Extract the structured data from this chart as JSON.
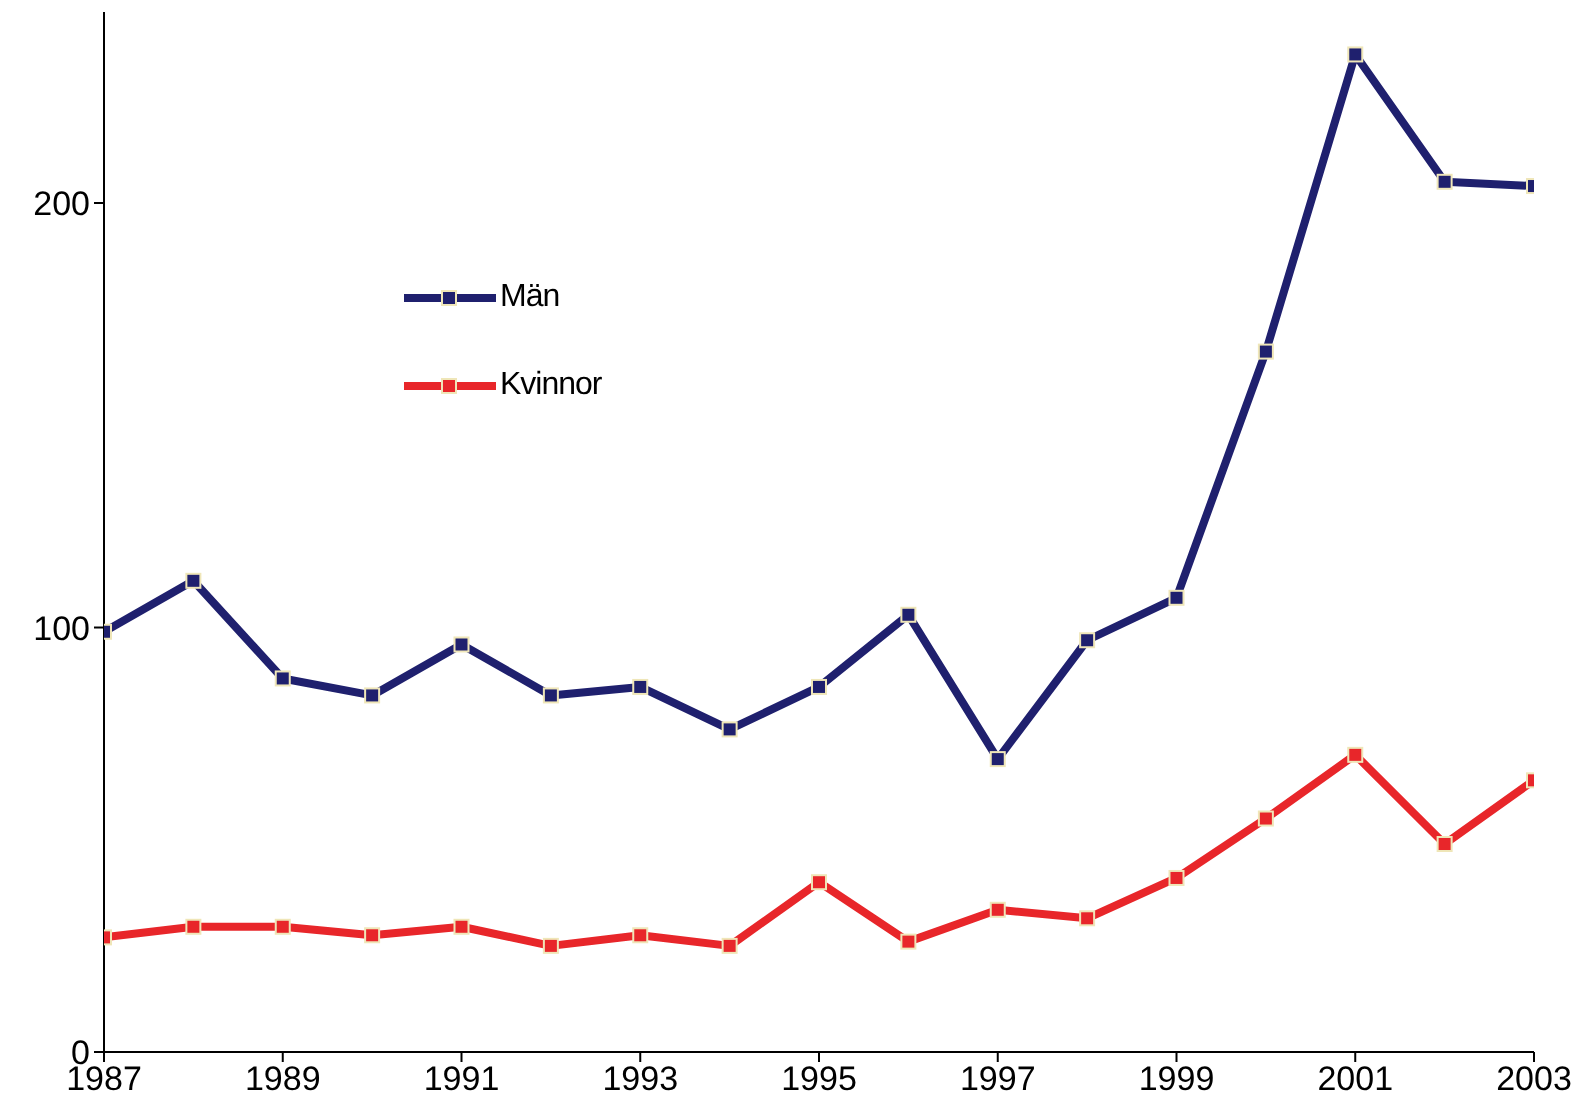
{
  "chart_data": {
    "type": "line",
    "x": [
      1987,
      1988,
      1989,
      1990,
      1991,
      1992,
      1993,
      1994,
      1995,
      1996,
      1997,
      1998,
      1999,
      2000,
      2001,
      2002,
      2003
    ],
    "series": [
      {
        "name": "Män",
        "color": "#1f206e",
        "values": [
          99,
          111,
          88,
          84,
          96,
          84,
          86,
          76,
          86,
          103,
          69,
          97,
          107,
          165,
          235,
          205,
          204
        ]
      },
      {
        "name": "Kvinnor",
        "color": "#e8262a",
        "values": [
          27,
          29.5,
          29.5,
          27.5,
          29.5,
          25,
          27.5,
          25,
          40,
          26,
          33.5,
          31.5,
          41,
          55,
          70,
          49,
          64
        ]
      }
    ],
    "xlim": [
      1987,
      2003
    ],
    "xticks": [
      1987,
      1989,
      1991,
      1993,
      1995,
      1997,
      1999,
      2001,
      2003
    ],
    "ylim": [
      0,
      245
    ],
    "yticks": [
      0,
      100,
      200
    ],
    "grid": false,
    "legend": "top left",
    "marker": "square",
    "line_style": "solid"
  }
}
